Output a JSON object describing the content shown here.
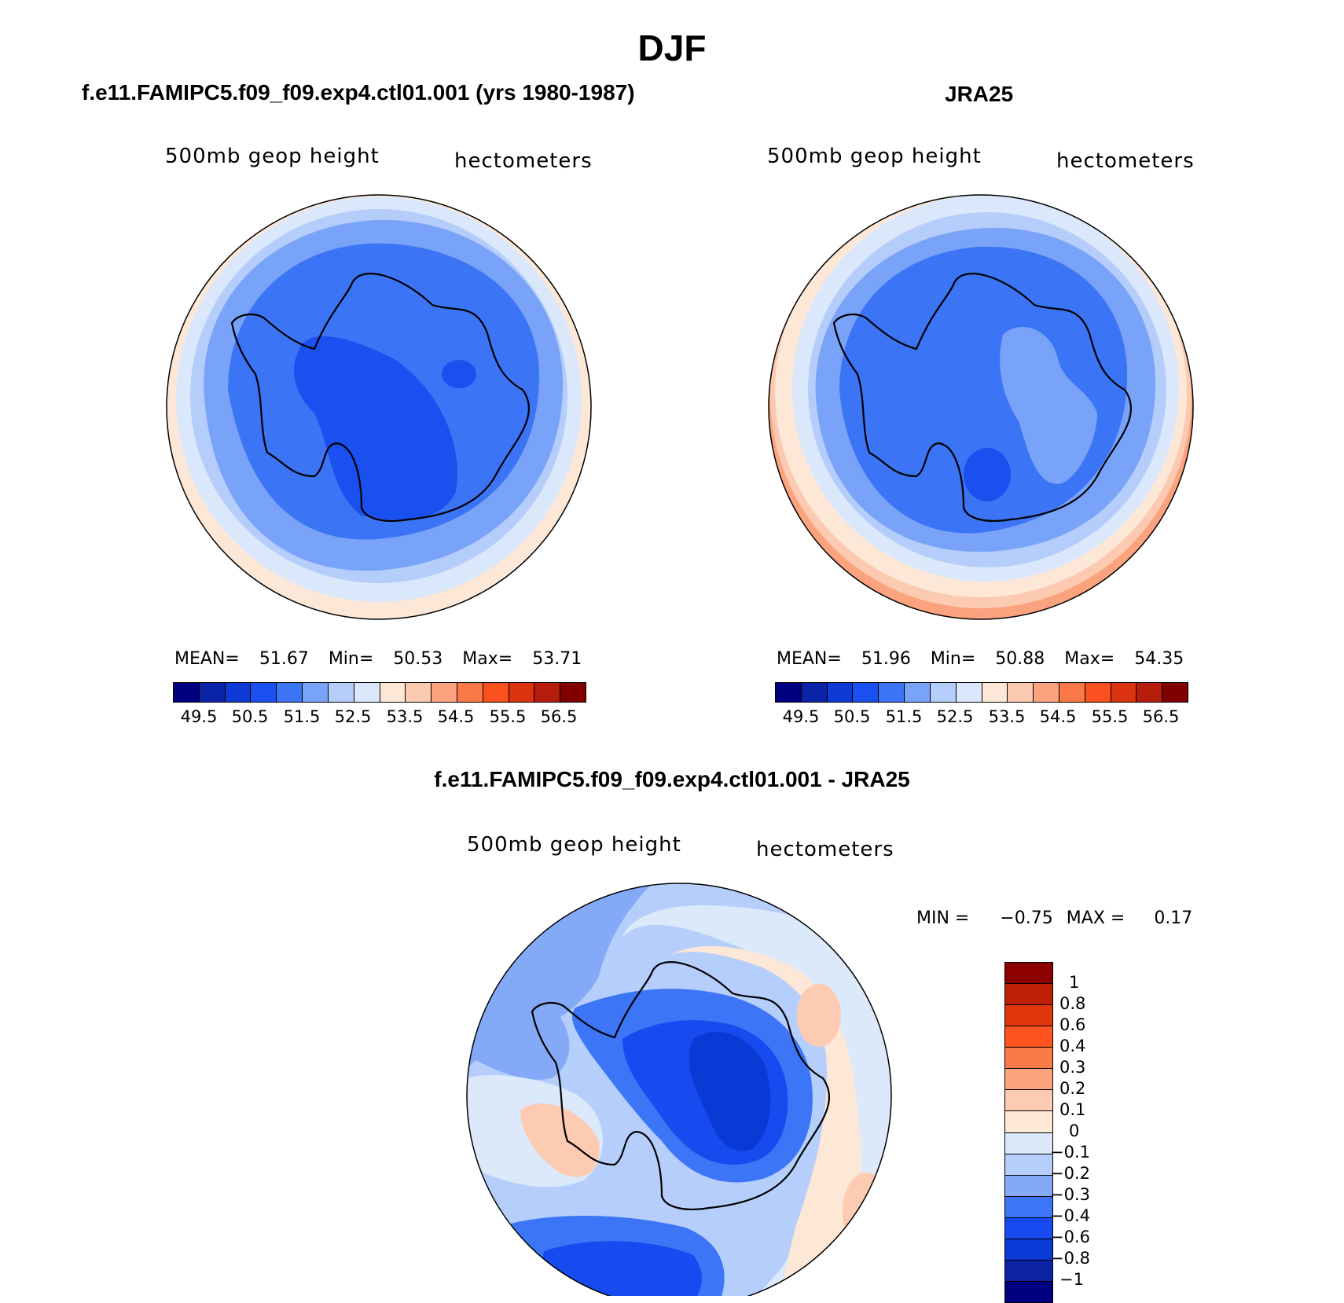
{
  "figure": {
    "title": "DJF"
  },
  "panels": [
    {
      "case_title": "f.e11.FAMIPC5.f09_f09.exp4.ctl01.001 (yrs 1980-1987)",
      "variable": "500mb geop height",
      "units": "hectometers",
      "stats": {
        "mean_label": "MEAN=",
        "mean": "51.67",
        "min_label": "Min=",
        "min": "50.53",
        "max_label": "Max=",
        "max": "53.71"
      }
    },
    {
      "case_title": "JRA25",
      "variable": "500mb geop height",
      "units": "hectometers",
      "stats": {
        "mean_label": "MEAN=",
        "mean": "51.96",
        "min_label": "Min=",
        "min": "50.88",
        "max_label": "Max=",
        "max": "54.35"
      }
    },
    {
      "case_title": "f.e11.FAMIPC5.f09_f09.exp4.ctl01.001 - JRA25",
      "variable": "500mb geop height",
      "units": "hectometers",
      "stats": {
        "min_label": "MIN =",
        "min": "−0.75",
        "max_label": "MAX =",
        "max": "0.17"
      }
    }
  ],
  "colorbar_abs": {
    "colors": [
      "#000080",
      "#0a22a6",
      "#0d3ad4",
      "#1a4ff0",
      "#3b74f5",
      "#79a3f8",
      "#b5cdfa",
      "#dbe8fb",
      "#fde7d7",
      "#fcc9b1",
      "#fba37f",
      "#fb7848",
      "#f9501f",
      "#dc3410",
      "#b61d0c",
      "#800000"
    ],
    "ticks": [
      "49.5",
      "50.5",
      "51.5",
      "52.5",
      "53.5",
      "54.5",
      "55.5",
      "56.5"
    ]
  },
  "colorbar_diff": {
    "colors": [
      "#8c0000",
      "#bf1f05",
      "#e0360b",
      "#ff5320",
      "#fa7a4a",
      "#fba57e",
      "#fdcab2",
      "#fde7d6",
      "#dce9fb",
      "#b6cefb",
      "#84aaf7",
      "#3c76f7",
      "#174bf0",
      "#0b39d6",
      "#0b22a5",
      "#000080"
    ],
    "ticks": [
      "1",
      "0.8",
      "0.6",
      "0.4",
      "0.3",
      "0.2",
      "0.1",
      "0",
      "−0.1",
      "−0.2",
      "−0.3",
      "−0.4",
      "−0.6",
      "−0.8",
      "−1"
    ]
  },
  "chart_data": [
    {
      "type": "heatmap",
      "title": "f.e11.FAMIPC5.f09_f09.exp4.ctl01.001 (yrs 1980-1987)",
      "variable": "500mb geop height",
      "units": "hectometers",
      "projection": "south polar stereographic",
      "mean": 51.67,
      "min": 50.53,
      "max": 53.71,
      "levels": [
        49.5,
        50,
        50.5,
        51,
        51.5,
        52,
        52.5,
        53,
        53.5,
        54,
        54.5,
        55,
        55.5,
        56,
        56.5
      ]
    },
    {
      "type": "heatmap",
      "title": "JRA25",
      "variable": "500mb geop height",
      "units": "hectometers",
      "projection": "south polar stereographic",
      "mean": 51.96,
      "min": 50.88,
      "max": 54.35,
      "levels": [
        49.5,
        50,
        50.5,
        51,
        51.5,
        52,
        52.5,
        53,
        53.5,
        54,
        54.5,
        55,
        55.5,
        56,
        56.5
      ]
    },
    {
      "type": "heatmap",
      "title": "f.e11.FAMIPC5.f09_f09.exp4.ctl01.001 - JRA25",
      "variable": "500mb geop height",
      "units": "hectometers",
      "projection": "south polar stereographic",
      "min": -0.75,
      "max": 0.17,
      "levels": [
        -1,
        -0.8,
        -0.6,
        -0.4,
        -0.3,
        -0.2,
        -0.1,
        0,
        0.1,
        0.2,
        0.3,
        0.4,
        0.6,
        0.8,
        1
      ]
    }
  ]
}
